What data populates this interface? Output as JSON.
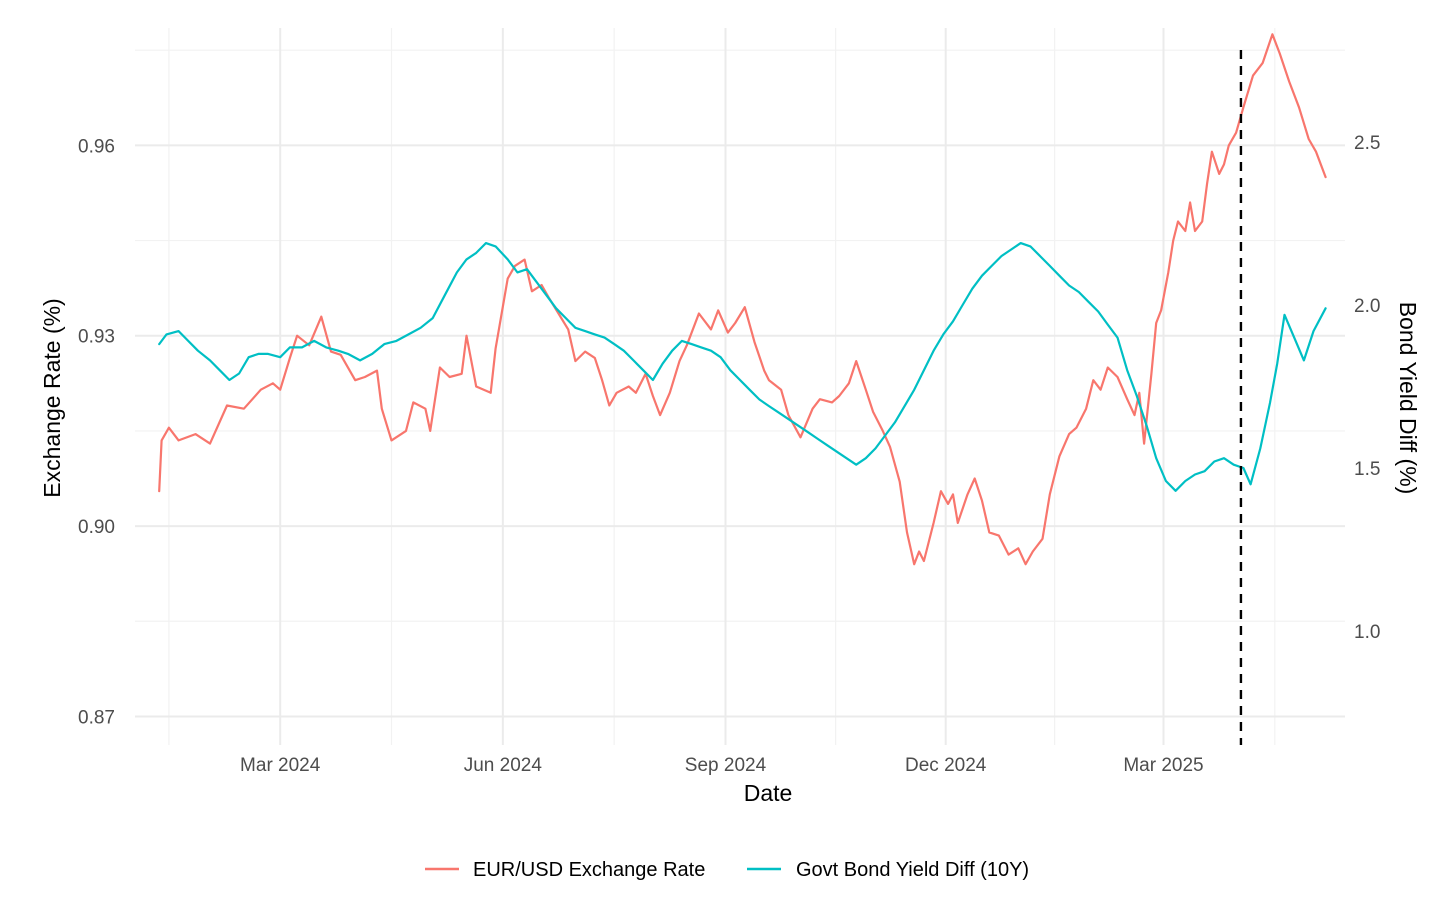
{
  "chart_data": {
    "type": "line",
    "title": "",
    "xlabel": "Date",
    "ylabel": "Exchange Rate (%)",
    "y2label": "Bond Yield Diff (%)",
    "x_ticks": [
      "Mar 2024",
      "Jun 2024",
      "Sep 2024",
      "Dec 2024",
      "Mar 2025"
    ],
    "x_tick_dates": [
      "2024-03-01",
      "2024-06-01",
      "2024-09-01",
      "2024-12-01",
      "2025-03-01"
    ],
    "x_range": [
      "2024-01-01",
      "2025-05-15"
    ],
    "ylim": [
      0.8655,
      0.9785
    ],
    "y_ticks": [
      0.87,
      0.9,
      0.93,
      0.96
    ],
    "y_tick_labels": [
      "0.87",
      "0.90",
      "0.93",
      "0.96"
    ],
    "y2lim": [
      0.65,
      2.85
    ],
    "y2_ticks": [
      1.0,
      1.5,
      2.0,
      2.5
    ],
    "y2_tick_labels": [
      "1.0",
      "1.5",
      "2.0",
      "2.5"
    ],
    "vline_date": "2025-04-02",
    "legend_position": "bottom",
    "series": [
      {
        "name": "EUR/USD Exchange Rate",
        "axis": "left",
        "color": "#F8766D",
        "points": [
          [
            "2024-01-11",
            0.9055
          ],
          [
            "2024-01-12",
            0.9135
          ],
          [
            "2024-01-15",
            0.9155
          ],
          [
            "2024-01-19",
            0.9135
          ],
          [
            "2024-01-26",
            0.9145
          ],
          [
            "2024-02-01",
            0.913
          ],
          [
            "2024-02-08",
            0.919
          ],
          [
            "2024-02-15",
            0.9185
          ],
          [
            "2024-02-22",
            0.9215
          ],
          [
            "2024-02-27",
            0.9225
          ],
          [
            "2024-03-01",
            0.9215
          ],
          [
            "2024-03-05",
            0.9265
          ],
          [
            "2024-03-08",
            0.93
          ],
          [
            "2024-03-13",
            0.9285
          ],
          [
            "2024-03-18",
            0.933
          ],
          [
            "2024-03-22",
            0.9275
          ],
          [
            "2024-03-26",
            0.927
          ],
          [
            "2024-04-01",
            0.923
          ],
          [
            "2024-04-05",
            0.9235
          ],
          [
            "2024-04-10",
            0.9245
          ],
          [
            "2024-04-12",
            0.9185
          ],
          [
            "2024-04-16",
            0.9135
          ],
          [
            "2024-04-22",
            0.915
          ],
          [
            "2024-04-25",
            0.9195
          ],
          [
            "2024-04-30",
            0.9185
          ],
          [
            "2024-05-02",
            0.915
          ],
          [
            "2024-05-06",
            0.925
          ],
          [
            "2024-05-10",
            0.9235
          ],
          [
            "2024-05-15",
            0.924
          ],
          [
            "2024-05-17",
            0.93
          ],
          [
            "2024-05-21",
            0.922
          ],
          [
            "2024-05-27",
            0.921
          ],
          [
            "2024-05-29",
            0.928
          ],
          [
            "2024-06-03",
            0.939
          ],
          [
            "2024-06-06",
            0.941
          ],
          [
            "2024-06-10",
            0.942
          ],
          [
            "2024-06-13",
            0.937
          ],
          [
            "2024-06-17",
            0.938
          ],
          [
            "2024-06-20",
            0.936
          ],
          [
            "2024-06-24",
            0.9335
          ],
          [
            "2024-06-28",
            0.931
          ],
          [
            "2024-07-01",
            0.926
          ],
          [
            "2024-07-05",
            0.9275
          ],
          [
            "2024-07-09",
            0.9265
          ],
          [
            "2024-07-12",
            0.923
          ],
          [
            "2024-07-15",
            0.919
          ],
          [
            "2024-07-18",
            0.921
          ],
          [
            "2024-07-23",
            0.922
          ],
          [
            "2024-07-26",
            0.921
          ],
          [
            "2024-07-30",
            0.924
          ],
          [
            "2024-08-02",
            0.9205
          ],
          [
            "2024-08-05",
            0.9175
          ],
          [
            "2024-08-09",
            0.921
          ],
          [
            "2024-08-13",
            0.926
          ],
          [
            "2024-08-16",
            0.9285
          ],
          [
            "2024-08-21",
            0.9335
          ],
          [
            "2024-08-26",
            0.931
          ],
          [
            "2024-08-29",
            0.934
          ],
          [
            "2024-09-02",
            0.9305
          ],
          [
            "2024-09-05",
            0.932
          ],
          [
            "2024-09-09",
            0.9345
          ],
          [
            "2024-09-13",
            0.929
          ],
          [
            "2024-09-17",
            0.9245
          ],
          [
            "2024-09-19",
            0.923
          ],
          [
            "2024-09-24",
            0.9215
          ],
          [
            "2024-09-27",
            0.9175
          ],
          [
            "2024-10-02",
            0.914
          ],
          [
            "2024-10-07",
            0.9185
          ],
          [
            "2024-10-10",
            0.92
          ],
          [
            "2024-10-15",
            0.9195
          ],
          [
            "2024-10-18",
            0.9205
          ],
          [
            "2024-10-22",
            0.9225
          ],
          [
            "2024-10-25",
            0.926
          ],
          [
            "2024-10-29",
            0.9215
          ],
          [
            "2024-11-01",
            0.918
          ],
          [
            "2024-11-05",
            0.915
          ],
          [
            "2024-11-08",
            0.9125
          ],
          [
            "2024-11-12",
            0.907
          ],
          [
            "2024-11-15",
            0.899
          ],
          [
            "2024-11-18",
            0.894
          ],
          [
            "2024-11-20",
            0.896
          ],
          [
            "2024-11-22",
            0.8945
          ],
          [
            "2024-11-26",
            0.9005
          ],
          [
            "2024-11-29",
            0.9055
          ],
          [
            "2024-12-02",
            0.9035
          ],
          [
            "2024-12-04",
            0.905
          ],
          [
            "2024-12-06",
            0.9005
          ],
          [
            "2024-12-10",
            0.905
          ],
          [
            "2024-12-13",
            0.9075
          ],
          [
            "2024-12-16",
            0.904
          ],
          [
            "2024-12-19",
            0.899
          ],
          [
            "2024-12-23",
            0.8985
          ],
          [
            "2024-12-27",
            0.8955
          ],
          [
            "2024-12-31",
            0.8965
          ],
          [
            "2025-01-03",
            0.894
          ],
          [
            "2025-01-06",
            0.896
          ],
          [
            "2025-01-10",
            0.898
          ],
          [
            "2025-01-13",
            0.905
          ],
          [
            "2025-01-17",
            0.911
          ],
          [
            "2025-01-21",
            0.9145
          ],
          [
            "2025-01-24",
            0.9155
          ],
          [
            "2025-01-28",
            0.9185
          ],
          [
            "2025-01-31",
            0.923
          ],
          [
            "2025-02-03",
            0.9215
          ],
          [
            "2025-02-06",
            0.925
          ],
          [
            "2025-02-10",
            0.9235
          ],
          [
            "2025-02-14",
            0.92
          ],
          [
            "2025-02-17",
            0.9175
          ],
          [
            "2025-02-19",
            0.921
          ],
          [
            "2025-02-21",
            0.913
          ],
          [
            "2025-02-24",
            0.924
          ],
          [
            "2025-02-26",
            0.932
          ],
          [
            "2025-02-28",
            0.934
          ],
          [
            "2025-03-03",
            0.94
          ],
          [
            "2025-03-05",
            0.945
          ],
          [
            "2025-03-07",
            0.948
          ],
          [
            "2025-03-10",
            0.9465
          ],
          [
            "2025-03-12",
            0.951
          ],
          [
            "2025-03-14",
            0.9465
          ],
          [
            "2025-03-17",
            0.948
          ],
          [
            "2025-03-19",
            0.954
          ],
          [
            "2025-03-21",
            0.959
          ],
          [
            "2025-03-24",
            0.9555
          ],
          [
            "2025-03-26",
            0.957
          ],
          [
            "2025-03-28",
            0.96
          ],
          [
            "2025-03-31",
            0.962
          ],
          [
            "2025-04-03",
            0.966
          ],
          [
            "2025-04-07",
            0.971
          ],
          [
            "2025-04-11",
            0.973
          ],
          [
            "2025-04-15",
            0.9775
          ],
          [
            "2025-04-18",
            0.9745
          ],
          [
            "2025-04-22",
            0.97
          ],
          [
            "2025-04-26",
            0.966
          ],
          [
            "2025-04-30",
            0.961
          ],
          [
            "2025-05-03",
            0.959
          ],
          [
            "2025-05-07",
            0.955
          ]
        ]
      },
      {
        "name": "Govt Bond Yield Diff (10Y)",
        "axis": "right",
        "color": "#00BFC4",
        "points": [
          [
            "2024-01-11",
            1.88
          ],
          [
            "2024-01-14",
            1.91
          ],
          [
            "2024-01-19",
            1.92
          ],
          [
            "2024-01-23",
            1.89
          ],
          [
            "2024-01-27",
            1.86
          ],
          [
            "2024-02-01",
            1.83
          ],
          [
            "2024-02-05",
            1.8
          ],
          [
            "2024-02-09",
            1.77
          ],
          [
            "2024-02-13",
            1.79
          ],
          [
            "2024-02-17",
            1.84
          ],
          [
            "2024-02-21",
            1.85
          ],
          [
            "2024-02-25",
            1.85
          ],
          [
            "2024-03-01",
            1.84
          ],
          [
            "2024-03-05",
            1.87
          ],
          [
            "2024-03-10",
            1.87
          ],
          [
            "2024-03-15",
            1.89
          ],
          [
            "2024-03-20",
            1.87
          ],
          [
            "2024-03-25",
            1.86
          ],
          [
            "2024-03-29",
            1.85
          ],
          [
            "2024-04-03",
            1.83
          ],
          [
            "2024-04-08",
            1.85
          ],
          [
            "2024-04-13",
            1.88
          ],
          [
            "2024-04-18",
            1.89
          ],
          [
            "2024-04-23",
            1.91
          ],
          [
            "2024-04-28",
            1.93
          ],
          [
            "2024-05-03",
            1.96
          ],
          [
            "2024-05-08",
            2.03
          ],
          [
            "2024-05-13",
            2.1
          ],
          [
            "2024-05-17",
            2.14
          ],
          [
            "2024-05-21",
            2.16
          ],
          [
            "2024-05-25",
            2.19
          ],
          [
            "2024-05-29",
            2.18
          ],
          [
            "2024-06-03",
            2.14
          ],
          [
            "2024-06-07",
            2.1
          ],
          [
            "2024-06-11",
            2.11
          ],
          [
            "2024-06-15",
            2.07
          ],
          [
            "2024-06-19",
            2.03
          ],
          [
            "2024-06-23",
            1.99
          ],
          [
            "2024-06-27",
            1.96
          ],
          [
            "2024-07-01",
            1.93
          ],
          [
            "2024-07-05",
            1.92
          ],
          [
            "2024-07-09",
            1.91
          ],
          [
            "2024-07-13",
            1.9
          ],
          [
            "2024-07-17",
            1.88
          ],
          [
            "2024-07-21",
            1.86
          ],
          [
            "2024-07-25",
            1.83
          ],
          [
            "2024-07-29",
            1.8
          ],
          [
            "2024-08-02",
            1.77
          ],
          [
            "2024-08-06",
            1.82
          ],
          [
            "2024-08-10",
            1.86
          ],
          [
            "2024-08-14",
            1.89
          ],
          [
            "2024-08-18",
            1.88
          ],
          [
            "2024-08-22",
            1.87
          ],
          [
            "2024-08-26",
            1.86
          ],
          [
            "2024-08-30",
            1.84
          ],
          [
            "2024-09-03",
            1.8
          ],
          [
            "2024-09-07",
            1.77
          ],
          [
            "2024-09-11",
            1.74
          ],
          [
            "2024-09-15",
            1.71
          ],
          [
            "2024-09-19",
            1.69
          ],
          [
            "2024-09-23",
            1.67
          ],
          [
            "2024-09-27",
            1.65
          ],
          [
            "2024-10-01",
            1.63
          ],
          [
            "2024-10-05",
            1.61
          ],
          [
            "2024-10-09",
            1.59
          ],
          [
            "2024-10-13",
            1.57
          ],
          [
            "2024-10-17",
            1.55
          ],
          [
            "2024-10-21",
            1.53
          ],
          [
            "2024-10-25",
            1.51
          ],
          [
            "2024-10-29",
            1.53
          ],
          [
            "2024-11-02",
            1.56
          ],
          [
            "2024-11-06",
            1.6
          ],
          [
            "2024-11-10",
            1.64
          ],
          [
            "2024-11-14",
            1.69
          ],
          [
            "2024-11-18",
            1.74
          ],
          [
            "2024-11-22",
            1.8
          ],
          [
            "2024-11-26",
            1.86
          ],
          [
            "2024-11-30",
            1.91
          ],
          [
            "2024-12-04",
            1.95
          ],
          [
            "2024-12-08",
            2.0
          ],
          [
            "2024-12-12",
            2.05
          ],
          [
            "2024-12-16",
            2.09
          ],
          [
            "2024-12-20",
            2.12
          ],
          [
            "2024-12-24",
            2.15
          ],
          [
            "2024-12-28",
            2.17
          ],
          [
            "2025-01-01",
            2.19
          ],
          [
            "2025-01-05",
            2.18
          ],
          [
            "2025-01-09",
            2.15
          ],
          [
            "2025-01-13",
            2.12
          ],
          [
            "2025-01-17",
            2.09
          ],
          [
            "2025-01-21",
            2.06
          ],
          [
            "2025-01-25",
            2.04
          ],
          [
            "2025-01-29",
            2.01
          ],
          [
            "2025-02-02",
            1.98
          ],
          [
            "2025-02-06",
            1.94
          ],
          [
            "2025-02-10",
            1.9
          ],
          [
            "2025-02-14",
            1.8
          ],
          [
            "2025-02-18",
            1.72
          ],
          [
            "2025-02-22",
            1.63
          ],
          [
            "2025-02-26",
            1.53
          ],
          [
            "2025-03-02",
            1.46
          ],
          [
            "2025-03-06",
            1.43
          ],
          [
            "2025-03-10",
            1.46
          ],
          [
            "2025-03-14",
            1.48
          ],
          [
            "2025-03-18",
            1.49
          ],
          [
            "2025-03-22",
            1.52
          ],
          [
            "2025-03-26",
            1.53
          ],
          [
            "2025-03-30",
            1.51
          ],
          [
            "2025-04-03",
            1.5
          ],
          [
            "2025-04-06",
            1.45
          ],
          [
            "2025-04-10",
            1.56
          ],
          [
            "2025-04-14",
            1.7
          ],
          [
            "2025-04-17",
            1.82
          ],
          [
            "2025-04-20",
            1.97
          ],
          [
            "2025-04-24",
            1.9
          ],
          [
            "2025-04-28",
            1.83
          ],
          [
            "2025-05-02",
            1.92
          ],
          [
            "2025-05-07",
            1.99
          ]
        ]
      }
    ]
  }
}
